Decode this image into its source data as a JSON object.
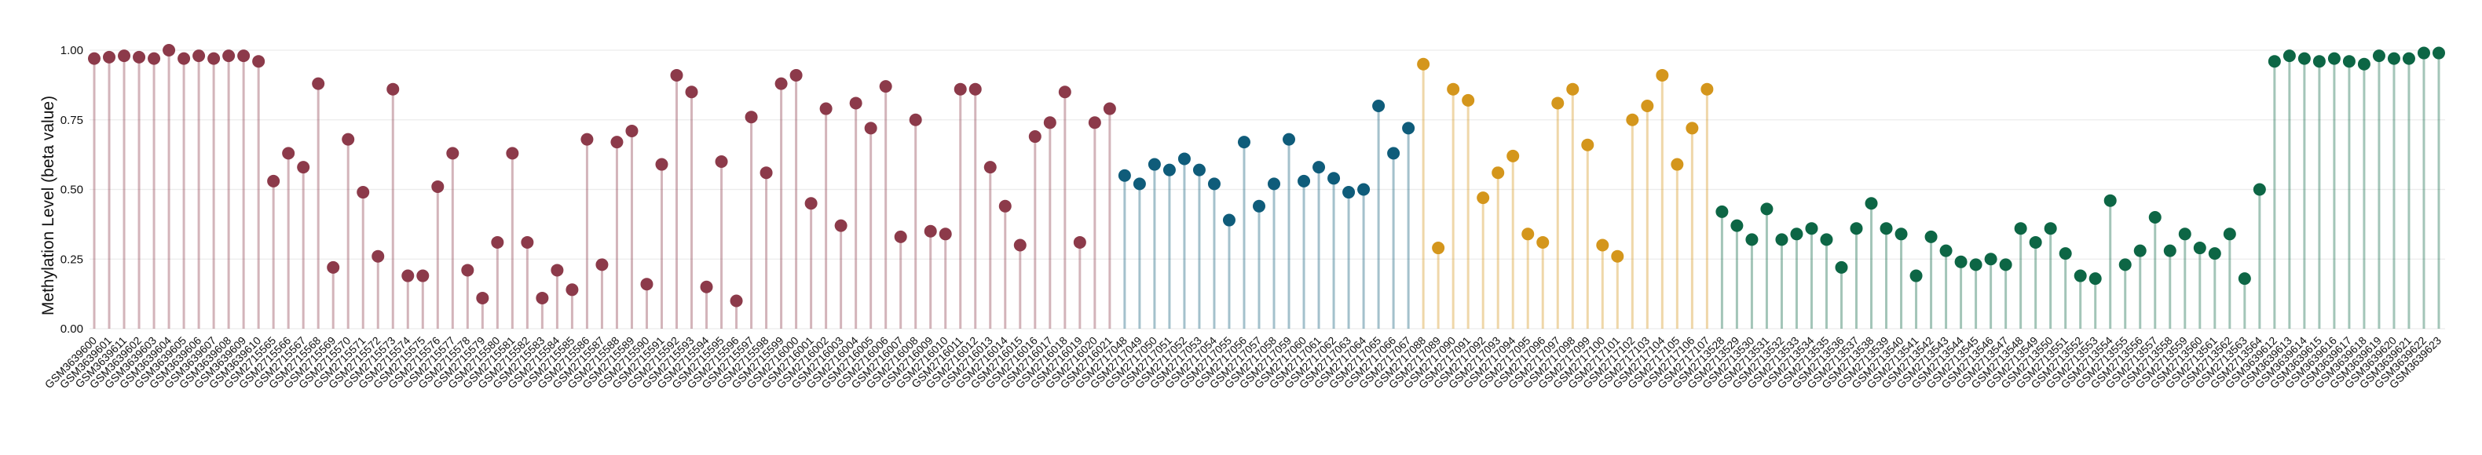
{
  "chart_data": {
    "type": "lollipop",
    "ylabel": "Methylation Level (beta value)",
    "ylim": [
      0,
      1.0
    ],
    "yticks": [
      "0.00",
      "0.25",
      "0.50",
      "0.75",
      "1.00"
    ],
    "grid": true,
    "series": [
      {
        "color": "#8c3a4a",
        "points": [
          {
            "label": "GSM3639600",
            "value": 0.97
          },
          {
            "label": "GSM3639601",
            "value": 0.975
          },
          {
            "label": "GSM3639611",
            "value": 0.98
          },
          {
            "label": "GSM3639602",
            "value": 0.975
          },
          {
            "label": "GSM3639603",
            "value": 0.97
          },
          {
            "label": "GSM3639604",
            "value": 1.0
          },
          {
            "label": "GSM3639605",
            "value": 0.97
          },
          {
            "label": "GSM3639606",
            "value": 0.98
          },
          {
            "label": "GSM3639607",
            "value": 0.97
          },
          {
            "label": "GSM3639608",
            "value": 0.98
          },
          {
            "label": "GSM3639609",
            "value": 0.98
          },
          {
            "label": "GSM3639610",
            "value": 0.96
          },
          {
            "label": "GSM2715565",
            "value": 0.53
          },
          {
            "label": "GSM2715566",
            "value": 0.63
          },
          {
            "label": "GSM2715567",
            "value": 0.58
          },
          {
            "label": "GSM2715568",
            "value": 0.88
          },
          {
            "label": "GSM2715569",
            "value": 0.22
          },
          {
            "label": "GSM2715570",
            "value": 0.68
          },
          {
            "label": "GSM2715571",
            "value": 0.49
          },
          {
            "label": "GSM2715572",
            "value": 0.26
          },
          {
            "label": "GSM2715573",
            "value": 0.86
          },
          {
            "label": "GSM2715574",
            "value": 0.19
          },
          {
            "label": "GSM2715575",
            "value": 0.19
          },
          {
            "label": "GSM2715576",
            "value": 0.51
          },
          {
            "label": "GSM2715577",
            "value": 0.63
          },
          {
            "label": "GSM2715578",
            "value": 0.21
          },
          {
            "label": "GSM2715579",
            "value": 0.11
          },
          {
            "label": "GSM2715580",
            "value": 0.31
          },
          {
            "label": "GSM2715581",
            "value": 0.63
          },
          {
            "label": "GSM2715582",
            "value": 0.31
          },
          {
            "label": "GSM2715583",
            "value": 0.11
          },
          {
            "label": "GSM2715584",
            "value": 0.21
          },
          {
            "label": "GSM2715585",
            "value": 0.14
          },
          {
            "label": "GSM2715586",
            "value": 0.68
          },
          {
            "label": "GSM2715587",
            "value": 0.23
          },
          {
            "label": "GSM2715588",
            "value": 0.67
          },
          {
            "label": "GSM2715589",
            "value": 0.71
          },
          {
            "label": "GSM2715590",
            "value": 0.16
          },
          {
            "label": "GSM2715591",
            "value": 0.59
          },
          {
            "label": "GSM2715592",
            "value": 0.91
          },
          {
            "label": "GSM2715593",
            "value": 0.85
          },
          {
            "label": "GSM2715594",
            "value": 0.15
          },
          {
            "label": "GSM2715595",
            "value": 0.6
          },
          {
            "label": "GSM2715596",
            "value": 0.1
          },
          {
            "label": "GSM2715597",
            "value": 0.76
          },
          {
            "label": "GSM2715598",
            "value": 0.56
          },
          {
            "label": "GSM2715599",
            "value": 0.88
          },
          {
            "label": "GSM2716000",
            "value": 0.91
          },
          {
            "label": "GSM2716001",
            "value": 0.45
          },
          {
            "label": "GSM2716002",
            "value": 0.79
          },
          {
            "label": "GSM2716003",
            "value": 0.37
          },
          {
            "label": "GSM2716004",
            "value": 0.81
          },
          {
            "label": "GSM2716005",
            "value": 0.72
          },
          {
            "label": "GSM2716006",
            "value": 0.87
          },
          {
            "label": "GSM2716007",
            "value": 0.33
          },
          {
            "label": "GSM2716008",
            "value": 0.75
          },
          {
            "label": "GSM2716009",
            "value": 0.35
          },
          {
            "label": "GSM2716010",
            "value": 0.34
          },
          {
            "label": "GSM2716011",
            "value": 0.86
          },
          {
            "label": "GSM2716012",
            "value": 0.86
          },
          {
            "label": "GSM2716013",
            "value": 0.58
          },
          {
            "label": "GSM2716014",
            "value": 0.44
          },
          {
            "label": "GSM2716015",
            "value": 0.3
          },
          {
            "label": "GSM2716016",
            "value": 0.69
          },
          {
            "label": "GSM2716017",
            "value": 0.74
          },
          {
            "label": "GSM2716018",
            "value": 0.85
          },
          {
            "label": "GSM2716019",
            "value": 0.31
          },
          {
            "label": "GSM2716020",
            "value": 0.74
          },
          {
            "label": "GSM2716021",
            "value": 0.79
          }
        ]
      },
      {
        "color": "#0f5c7a",
        "points": [
          {
            "label": "GSM2717048",
            "value": 0.55
          },
          {
            "label": "GSM2717049",
            "value": 0.52
          },
          {
            "label": "GSM2717050",
            "value": 0.59
          },
          {
            "label": "GSM2717051",
            "value": 0.57
          },
          {
            "label": "GSM2717052",
            "value": 0.61
          },
          {
            "label": "GSM2717053",
            "value": 0.57
          },
          {
            "label": "GSM2717054",
            "value": 0.52
          },
          {
            "label": "GSM2717055",
            "value": 0.39
          },
          {
            "label": "GSM2717056",
            "value": 0.67
          },
          {
            "label": "GSM2717057",
            "value": 0.44
          },
          {
            "label": "GSM2717058",
            "value": 0.52
          },
          {
            "label": "GSM2717059",
            "value": 0.68
          },
          {
            "label": "GSM2717060",
            "value": 0.53
          },
          {
            "label": "GSM2717061",
            "value": 0.58
          },
          {
            "label": "GSM2717062",
            "value": 0.54
          },
          {
            "label": "GSM2717063",
            "value": 0.49
          },
          {
            "label": "GSM2717064",
            "value": 0.5
          },
          {
            "label": "GSM2717065",
            "value": 0.8
          },
          {
            "label": "GSM2717066",
            "value": 0.63
          },
          {
            "label": "GSM2717067",
            "value": 0.72
          }
        ]
      },
      {
        "color": "#d4961c",
        "points": [
          {
            "label": "GSM2717088",
            "value": 0.95
          },
          {
            "label": "GSM2717089",
            "value": 0.29
          },
          {
            "label": "GSM2717090",
            "value": 0.86
          },
          {
            "label": "GSM2717091",
            "value": 0.82
          },
          {
            "label": "GSM2717092",
            "value": 0.47
          },
          {
            "label": "GSM2717093",
            "value": 0.56
          },
          {
            "label": "GSM2717094",
            "value": 0.62
          },
          {
            "label": "GSM2717095",
            "value": 0.34
          },
          {
            "label": "GSM2717096",
            "value": 0.31
          },
          {
            "label": "GSM2717097",
            "value": 0.81
          },
          {
            "label": "GSM2717098",
            "value": 0.86
          },
          {
            "label": "GSM2717099",
            "value": 0.66
          },
          {
            "label": "GSM2717100",
            "value": 0.3
          },
          {
            "label": "GSM2717101",
            "value": 0.26
          },
          {
            "label": "GSM2717102",
            "value": 0.75
          },
          {
            "label": "GSM2717103",
            "value": 0.8
          },
          {
            "label": "GSM2717104",
            "value": 0.91
          },
          {
            "label": "GSM2717105",
            "value": 0.59
          },
          {
            "label": "GSM2717106",
            "value": 0.72
          },
          {
            "label": "GSM2717107",
            "value": 0.86
          }
        ]
      },
      {
        "color": "#0d6645",
        "points": [
          {
            "label": "GSM2713528",
            "value": 0.42
          },
          {
            "label": "GSM2713529",
            "value": 0.37
          },
          {
            "label": "GSM2713530",
            "value": 0.32
          },
          {
            "label": "GSM2713531",
            "value": 0.43
          },
          {
            "label": "GSM2713532",
            "value": 0.32
          },
          {
            "label": "GSM2713533",
            "value": 0.34
          },
          {
            "label": "GSM2713534",
            "value": 0.36
          },
          {
            "label": "GSM2713535",
            "value": 0.32
          },
          {
            "label": "GSM2713536",
            "value": 0.22
          },
          {
            "label": "GSM2713537",
            "value": 0.36
          },
          {
            "label": "GSM2713538",
            "value": 0.45
          },
          {
            "label": "GSM2713539",
            "value": 0.36
          },
          {
            "label": "GSM2713540",
            "value": 0.34
          },
          {
            "label": "GSM2713541",
            "value": 0.19
          },
          {
            "label": "GSM2713542",
            "value": 0.33
          },
          {
            "label": "GSM2713543",
            "value": 0.28
          },
          {
            "label": "GSM2713544",
            "value": 0.24
          },
          {
            "label": "GSM2713545",
            "value": 0.23
          },
          {
            "label": "GSM2713546",
            "value": 0.25
          },
          {
            "label": "GSM2713547",
            "value": 0.23
          },
          {
            "label": "GSM2713548",
            "value": 0.36
          },
          {
            "label": "GSM2713549",
            "value": 0.31
          },
          {
            "label": "GSM2713550",
            "value": 0.36
          },
          {
            "label": "GSM2713551",
            "value": 0.27
          },
          {
            "label": "GSM2713552",
            "value": 0.19
          },
          {
            "label": "GSM2713553",
            "value": 0.18
          },
          {
            "label": "GSM2713554",
            "value": 0.46
          },
          {
            "label": "GSM2713555",
            "value": 0.23
          },
          {
            "label": "GSM2713556",
            "value": 0.28
          },
          {
            "label": "GSM2713557",
            "value": 0.4
          },
          {
            "label": "GSM2713558",
            "value": 0.28
          },
          {
            "label": "GSM2713559",
            "value": 0.34
          },
          {
            "label": "GSM2713560",
            "value": 0.29
          },
          {
            "label": "GSM2713561",
            "value": 0.27
          },
          {
            "label": "GSM2713562",
            "value": 0.34
          },
          {
            "label": "GSM2713563",
            "value": 0.18
          },
          {
            "label": "GSM2713564",
            "value": 0.5
          },
          {
            "label": "GSM3639612",
            "value": 0.96
          },
          {
            "label": "GSM3639613",
            "value": 0.98
          },
          {
            "label": "GSM3639614",
            "value": 0.97
          },
          {
            "label": "GSM3639615",
            "value": 0.96
          },
          {
            "label": "GSM3639616",
            "value": 0.97
          },
          {
            "label": "GSM3639617",
            "value": 0.96
          },
          {
            "label": "GSM3639618",
            "value": 0.95
          },
          {
            "label": "GSM3639619",
            "value": 0.98
          },
          {
            "label": "GSM3639620",
            "value": 0.97
          },
          {
            "label": "GSM3639621",
            "value": 0.97
          },
          {
            "label": "GSM3639622",
            "value": 0.99
          },
          {
            "label": "GSM3639623",
            "value": 0.99
          }
        ]
      }
    ]
  }
}
